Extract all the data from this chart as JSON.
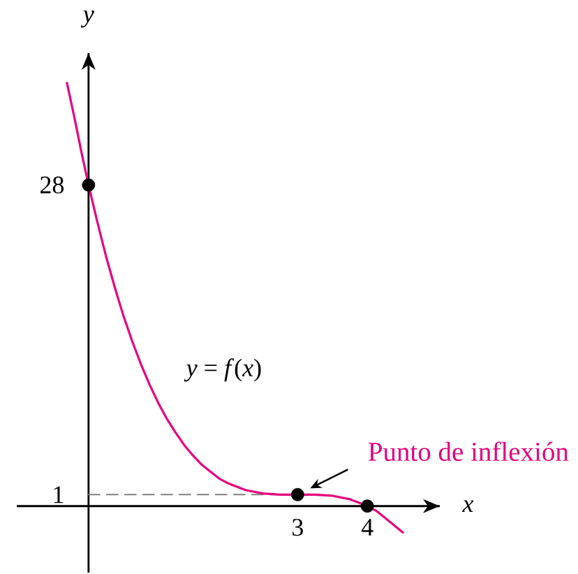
{
  "chart_data": {
    "type": "line",
    "xlabel": "x",
    "ylabel": "y",
    "xlim": [
      -1.03,
      5.04
    ],
    "ylim": [
      -5.8,
      39.5
    ],
    "xticks": [
      3,
      4
    ],
    "yticks": [
      1,
      28
    ],
    "annotations": [
      {
        "text": "Punto de inflexión",
        "x": 3,
        "y": 1
      }
    ],
    "series": [
      {
        "color": "#808080",
        "line_style": "dashed",
        "x": [
          0,
          3
        ],
        "values": [
          1,
          1
        ]
      },
      {
        "name": "*y* = *f*(*x*)",
        "color": "#e6007e",
        "x": [
          -0.31,
          -0.2,
          -0.1,
          0,
          0.125,
          0.25,
          0.375,
          0.5,
          0.625,
          0.75,
          0.875,
          1,
          1.125,
          1.25,
          1.375,
          1.5,
          1.625,
          1.75,
          1.875,
          2,
          2.25,
          2.5,
          2.75,
          3,
          3.25,
          3.5,
          3.75,
          3.875,
          4,
          4.125,
          4.25,
          4.51
        ],
        "values": [
          36.9,
          33.8,
          30.8,
          28,
          24.8,
          21.8,
          19.1,
          16.6,
          14.4,
          12.4,
          10.6,
          9,
          7.6,
          6.4,
          5.3,
          4.4,
          3.6,
          3,
          2.4,
          2,
          1.4,
          1.1,
          1,
          1,
          1,
          0.9,
          0.6,
          0.3,
          0,
          -0.4,
          -1,
          -2.3
        ]
      },
      {
        "type": "scatter",
        "color": "#000000",
        "marker": "circle",
        "x": [
          0,
          3,
          4
        ],
        "values": [
          28,
          1,
          0
        ]
      }
    ]
  }
}
